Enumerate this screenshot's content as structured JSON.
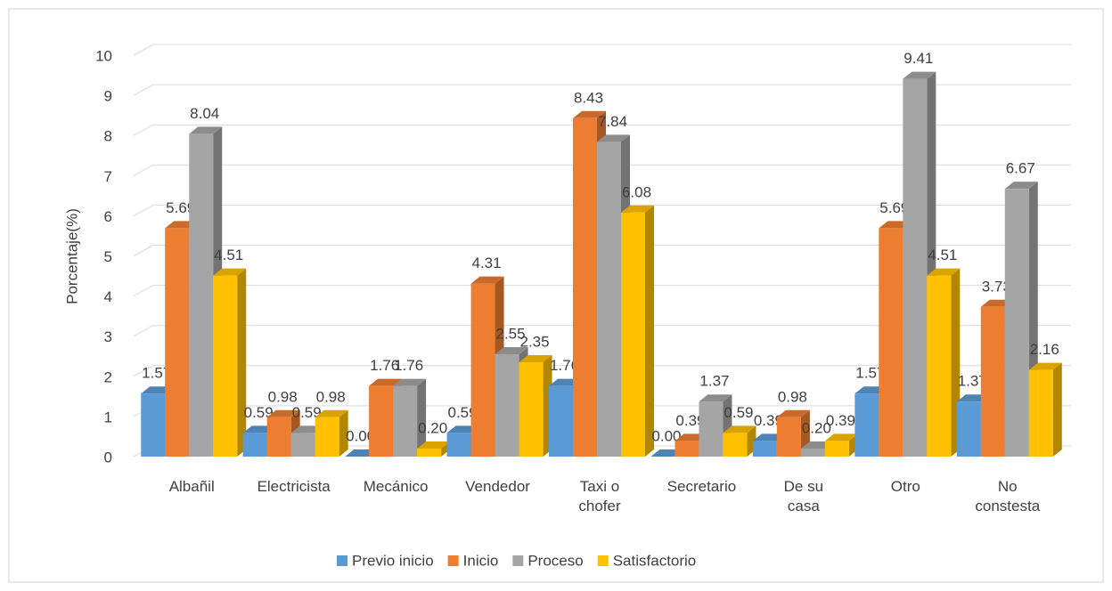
{
  "chart_data": {
    "type": "bar3d",
    "ylabel": "Porcentaje(%)",
    "categories": [
      "Albañil",
      "Electricista",
      "Mecánico",
      "Vendedor",
      "Taxi o chofer",
      "Secretario",
      "De su casa",
      "Otro",
      "No constesta"
    ],
    "series": [
      {
        "name": "Previo inicio",
        "color": "#5b9bd5",
        "values": [
          1.57,
          0.59,
          0,
          0.59,
          1.76,
          0,
          0.39,
          1.57,
          1.37
        ],
        "value_labels": [
          "1.57",
          "0.59",
          "0.00",
          "0.59",
          "1.76",
          "0.00",
          "0.39",
          "1.57",
          "1.37"
        ]
      },
      {
        "name": "Inicio",
        "color": "#ed7d31",
        "values": [
          5.69,
          0.98,
          1.76,
          4.31,
          8.43,
          0.39,
          0.98,
          5.69,
          3.73
        ],
        "value_labels": [
          "5.69",
          "0.98",
          "1.76",
          "4.31",
          "8.43",
          "0.39",
          "0.98",
          "5.69",
          "3.73"
        ]
      },
      {
        "name": "Proceso",
        "color": "#a5a5a5",
        "values": [
          8.04,
          0.59,
          1.76,
          2.55,
          7.84,
          1.37,
          0.2,
          9.41,
          6.67
        ],
        "value_labels": [
          "8.04",
          "0.59",
          "1.76",
          "2.55",
          "7.84",
          "1.37",
          "0.20",
          "9.41",
          "6.67"
        ]
      },
      {
        "name": "Satisfactorio",
        "color": "#ffc000",
        "values": [
          4.51,
          0.98,
          0.2,
          2.35,
          6.08,
          0.59,
          0.39,
          4.51,
          2.16
        ],
        "value_labels": [
          "4.51",
          "0.98",
          "0.20",
          "2.35",
          "6.08",
          "0.59",
          "0.39",
          "4.51",
          "2.16"
        ]
      }
    ],
    "ylim": [
      0,
      10
    ],
    "yticks": [
      0,
      1,
      2,
      3,
      4,
      5,
      6,
      7,
      8,
      9,
      10
    ],
    "grid": true,
    "legend": "bottom"
  }
}
